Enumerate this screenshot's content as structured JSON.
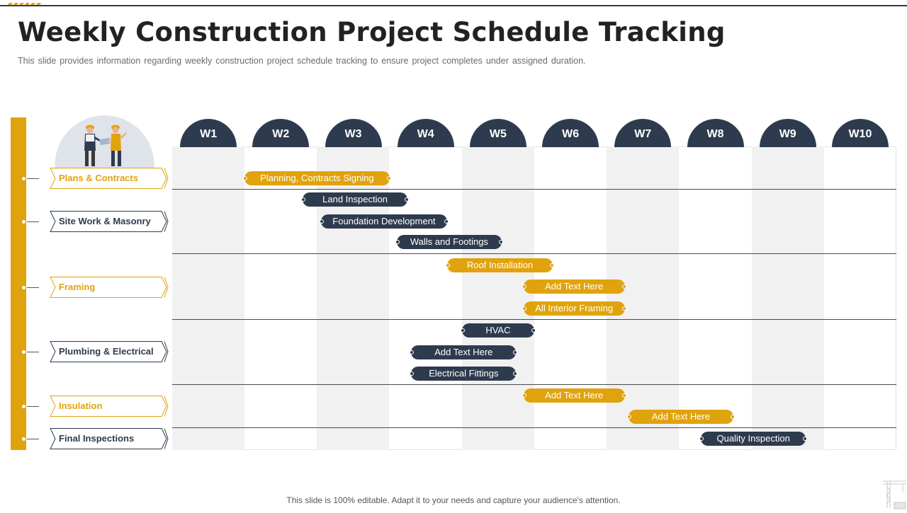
{
  "title": "Weekly Construction Project Schedule Tracking",
  "subtitle": "This slide provides information regarding weekly construction project schedule tracking to ensure project completes under assigned duration.",
  "weeks": [
    "W1",
    "W2",
    "W3",
    "W4",
    "W5",
    "W6",
    "W7",
    "W8",
    "W9",
    "W10"
  ],
  "categories": [
    {
      "label": "Plans & Contracts",
      "color": "gold"
    },
    {
      "label": "Site Work & Masonry",
      "color": "navy"
    },
    {
      "label": "Framing",
      "color": "gold"
    },
    {
      "label": "Plumbing & Electrical",
      "color": "navy"
    },
    {
      "label": "Insulation",
      "color": "gold"
    },
    {
      "label": "Final Inspections",
      "color": "navy"
    }
  ],
  "tasks": [
    {
      "label": "Planning, Contracts Signing",
      "color": "gold",
      "start_week": 2.0,
      "end_week": 4.0
    },
    {
      "label": "Land Inspection",
      "color": "navy",
      "start_week": 2.8,
      "end_week": 4.25
    },
    {
      "label": "Foundation Development",
      "color": "navy",
      "start_week": 3.05,
      "end_week": 4.8
    },
    {
      "label": "Walls and Footings",
      "color": "navy",
      "start_week": 4.1,
      "end_week": 5.55
    },
    {
      "label": "Roof Installation",
      "color": "gold",
      "start_week": 4.8,
      "end_week": 6.25
    },
    {
      "label": "Add Text Here",
      "color": "gold",
      "start_week": 5.85,
      "end_week": 7.25
    },
    {
      "label": "All Interior Framing",
      "color": "gold",
      "start_week": 5.85,
      "end_week": 7.25
    },
    {
      "label": "HVAC",
      "color": "navy",
      "start_week": 5.0,
      "end_week": 6.0
    },
    {
      "label": "Add Text Here",
      "color": "navy",
      "start_week": 4.3,
      "end_week": 5.75
    },
    {
      "label": "Electrical Fittings",
      "color": "navy",
      "start_week": 4.3,
      "end_week": 5.75
    },
    {
      "label": "Add Text Here",
      "color": "gold",
      "start_week": 5.85,
      "end_week": 7.25
    },
    {
      "label": "Add Text Here",
      "color": "gold",
      "start_week": 7.3,
      "end_week": 8.75
    },
    {
      "label": "Quality Inspection",
      "color": "navy",
      "start_week": 8.3,
      "end_week": 9.75
    }
  ],
  "footer": "This slide is 100% editable. Adapt it to your needs and capture your audience's attention.",
  "colors": {
    "gold": "#e0a30d",
    "navy": "#2e3b4e",
    "shade": "#f1f1f1"
  },
  "icons": {
    "illustration": "construction-workers-icon",
    "corner": "crane-icon"
  }
}
